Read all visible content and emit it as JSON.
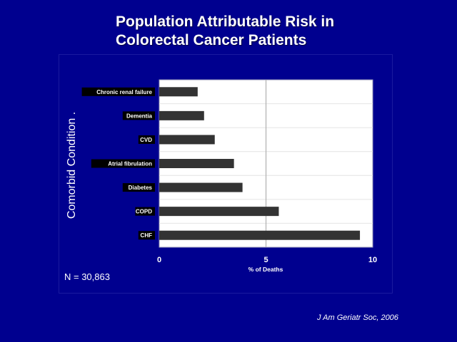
{
  "slide": {
    "title_line1": "Population Attributable Risk in",
    "title_line2": "Colorectal Cancer Patients",
    "sample_size": "N = 30,863",
    "citation": "J Am Geriatr Soc, 2006"
  },
  "chart_data": {
    "type": "bar",
    "orientation": "horizontal",
    "title": "Population Attributable Risk in Colorectal Cancer Patients",
    "categories": [
      "Chronic renal failure",
      "Dementia",
      "CVD",
      "Atrial fibrulation",
      "Diabetes",
      "COPD",
      "CHF"
    ],
    "values": [
      1.8,
      2.1,
      2.6,
      3.5,
      3.9,
      5.6,
      9.4
    ],
    "xlabel": "% of Deaths",
    "ylabel": "Comorbid Condition .",
    "xlim": [
      0,
      10
    ],
    "xticks": [
      "0",
      "5",
      "10"
    ],
    "grid": true,
    "bar_color": "#333333",
    "plot_background": "#ffffff",
    "slide_background": "#00008f"
  }
}
